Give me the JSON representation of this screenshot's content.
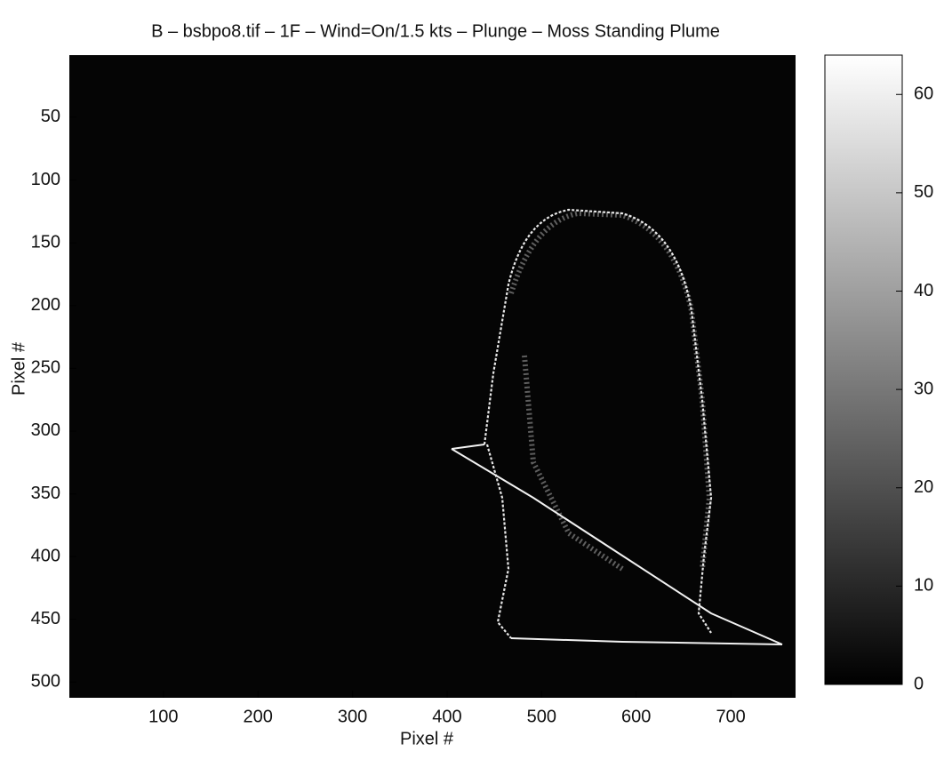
{
  "chart_data": {
    "type": "image",
    "title": "B – bsbpo8.tif – 1F –  Wind=On/1.5 kts –  Plunge  – Moss  Standing Plume",
    "x_label": "Pixel #",
    "y_label": "Pixel #",
    "xlim": [
      0.5,
      768.5
    ],
    "xticks": [
      100,
      200,
      300,
      400,
      500,
      600,
      700
    ],
    "ylim": [
      0.5,
      512.5
    ],
    "yticks": [
      50,
      100,
      150,
      200,
      250,
      300,
      350,
      400,
      450,
      500
    ],
    "y_reversed": true,
    "colormap": "gray",
    "colorbar": {
      "lim": [
        0,
        64
      ],
      "ticks": [
        0,
        10,
        20,
        30,
        40,
        50,
        60
      ]
    }
  }
}
